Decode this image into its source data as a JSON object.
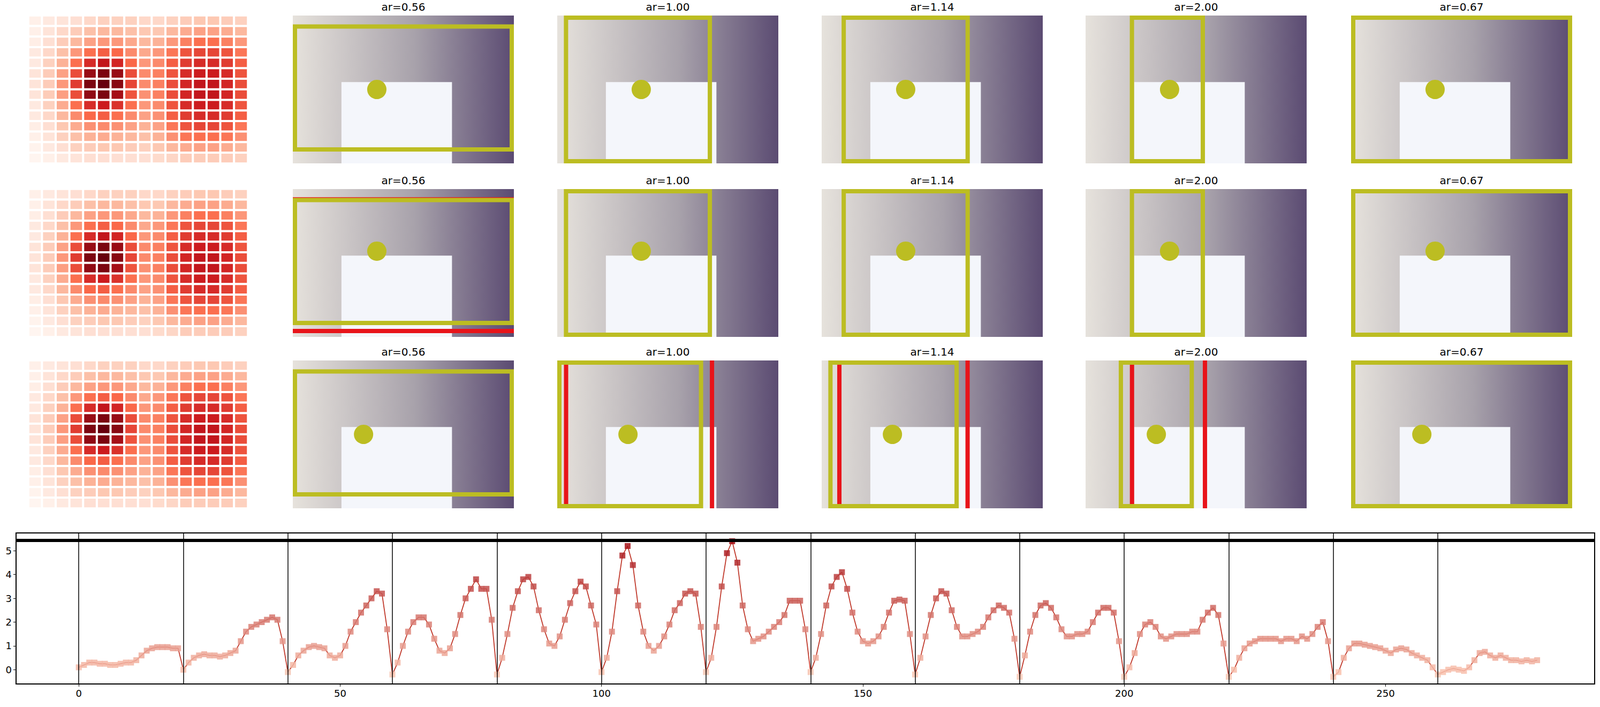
{
  "chart_data": [
    {
      "type": "heatmap",
      "tick_labels": false,
      "cells": [
        [
          0.05,
          0.08,
          0.1,
          0.12,
          0.15,
          0.18,
          0.18,
          0.18,
          0.15,
          0.15,
          0.18,
          0.2,
          0.22,
          0.22,
          0.2,
          0.18
        ],
        [
          0.05,
          0.1,
          0.15,
          0.2,
          0.25,
          0.28,
          0.28,
          0.25,
          0.22,
          0.22,
          0.28,
          0.32,
          0.35,
          0.35,
          0.32,
          0.28
        ],
        [
          0.06,
          0.12,
          0.2,
          0.28,
          0.35,
          0.38,
          0.38,
          0.33,
          0.28,
          0.3,
          0.38,
          0.45,
          0.5,
          0.5,
          0.45,
          0.38
        ],
        [
          0.08,
          0.15,
          0.25,
          0.38,
          0.5,
          0.55,
          0.52,
          0.42,
          0.33,
          0.38,
          0.48,
          0.58,
          0.62,
          0.62,
          0.58,
          0.48
        ],
        [
          0.08,
          0.18,
          0.3,
          0.5,
          0.7,
          0.78,
          0.72,
          0.52,
          0.38,
          0.42,
          0.55,
          0.65,
          0.7,
          0.7,
          0.65,
          0.55
        ],
        [
          0.1,
          0.2,
          0.35,
          0.6,
          0.88,
          0.95,
          0.88,
          0.6,
          0.42,
          0.45,
          0.58,
          0.7,
          0.75,
          0.75,
          0.7,
          0.58
        ],
        [
          0.1,
          0.2,
          0.38,
          0.65,
          0.95,
          1.0,
          0.92,
          0.62,
          0.42,
          0.45,
          0.6,
          0.72,
          0.78,
          0.78,
          0.72,
          0.6
        ],
        [
          0.1,
          0.2,
          0.36,
          0.6,
          0.9,
          0.95,
          0.85,
          0.58,
          0.4,
          0.45,
          0.6,
          0.72,
          0.78,
          0.78,
          0.72,
          0.6
        ],
        [
          0.08,
          0.18,
          0.32,
          0.5,
          0.7,
          0.75,
          0.68,
          0.5,
          0.38,
          0.42,
          0.58,
          0.7,
          0.75,
          0.75,
          0.7,
          0.58
        ],
        [
          0.08,
          0.15,
          0.28,
          0.42,
          0.52,
          0.55,
          0.5,
          0.42,
          0.35,
          0.4,
          0.55,
          0.65,
          0.7,
          0.7,
          0.65,
          0.55
        ],
        [
          0.06,
          0.12,
          0.22,
          0.32,
          0.4,
          0.42,
          0.4,
          0.35,
          0.3,
          0.35,
          0.48,
          0.58,
          0.62,
          0.62,
          0.58,
          0.48
        ],
        [
          0.05,
          0.1,
          0.18,
          0.25,
          0.3,
          0.32,
          0.3,
          0.28,
          0.25,
          0.3,
          0.4,
          0.48,
          0.5,
          0.5,
          0.48,
          0.4
        ],
        [
          0.04,
          0.08,
          0.12,
          0.18,
          0.2,
          0.22,
          0.22,
          0.2,
          0.18,
          0.22,
          0.28,
          0.32,
          0.35,
          0.35,
          0.32,
          0.28
        ],
        [
          0.03,
          0.05,
          0.08,
          0.1,
          0.12,
          0.12,
          0.12,
          0.12,
          0.12,
          0.14,
          0.16,
          0.2,
          0.2,
          0.2,
          0.2,
          0.18
        ]
      ]
    },
    {
      "type": "heatmap",
      "tick_labels": false,
      "cells": [
        [
          0.05,
          0.08,
          0.1,
          0.12,
          0.15,
          0.18,
          0.18,
          0.18,
          0.15,
          0.15,
          0.18,
          0.2,
          0.22,
          0.22,
          0.2,
          0.18
        ],
        [
          0.05,
          0.1,
          0.15,
          0.2,
          0.25,
          0.28,
          0.28,
          0.25,
          0.22,
          0.22,
          0.28,
          0.32,
          0.35,
          0.35,
          0.32,
          0.28
        ],
        [
          0.06,
          0.12,
          0.2,
          0.28,
          0.35,
          0.38,
          0.38,
          0.33,
          0.28,
          0.3,
          0.38,
          0.45,
          0.5,
          0.5,
          0.45,
          0.38
        ],
        [
          0.08,
          0.15,
          0.25,
          0.38,
          0.5,
          0.55,
          0.52,
          0.42,
          0.33,
          0.38,
          0.48,
          0.58,
          0.62,
          0.62,
          0.58,
          0.48
        ],
        [
          0.08,
          0.18,
          0.3,
          0.5,
          0.7,
          0.78,
          0.72,
          0.52,
          0.38,
          0.42,
          0.55,
          0.65,
          0.7,
          0.7,
          0.65,
          0.55
        ],
        [
          0.1,
          0.2,
          0.35,
          0.6,
          0.88,
          0.95,
          0.88,
          0.6,
          0.42,
          0.45,
          0.58,
          0.7,
          0.75,
          0.75,
          0.7,
          0.58
        ],
        [
          0.1,
          0.2,
          0.38,
          0.65,
          0.95,
          1.0,
          0.92,
          0.62,
          0.42,
          0.45,
          0.6,
          0.72,
          0.78,
          0.78,
          0.72,
          0.6
        ],
        [
          0.1,
          0.2,
          0.36,
          0.6,
          0.9,
          0.95,
          0.85,
          0.58,
          0.4,
          0.45,
          0.6,
          0.72,
          0.78,
          0.78,
          0.72,
          0.6
        ],
        [
          0.08,
          0.18,
          0.32,
          0.5,
          0.7,
          0.75,
          0.68,
          0.5,
          0.38,
          0.42,
          0.58,
          0.7,
          0.75,
          0.75,
          0.7,
          0.58
        ],
        [
          0.08,
          0.15,
          0.28,
          0.42,
          0.52,
          0.55,
          0.5,
          0.42,
          0.35,
          0.4,
          0.55,
          0.65,
          0.7,
          0.7,
          0.65,
          0.55
        ],
        [
          0.06,
          0.12,
          0.22,
          0.32,
          0.4,
          0.42,
          0.4,
          0.35,
          0.3,
          0.35,
          0.48,
          0.58,
          0.62,
          0.62,
          0.58,
          0.48
        ],
        [
          0.05,
          0.1,
          0.18,
          0.25,
          0.3,
          0.32,
          0.3,
          0.28,
          0.25,
          0.3,
          0.4,
          0.48,
          0.5,
          0.5,
          0.48,
          0.4
        ],
        [
          0.04,
          0.08,
          0.12,
          0.18,
          0.2,
          0.22,
          0.22,
          0.2,
          0.18,
          0.22,
          0.28,
          0.32,
          0.35,
          0.35,
          0.32,
          0.28
        ],
        [
          0.03,
          0.05,
          0.08,
          0.1,
          0.12,
          0.12,
          0.12,
          0.12,
          0.12,
          0.14,
          0.16,
          0.2,
          0.2,
          0.2,
          0.2,
          0.18
        ]
      ]
    },
    {
      "type": "heatmap",
      "tick_labels": false,
      "cells": [
        [
          0.05,
          0.08,
          0.1,
          0.12,
          0.15,
          0.18,
          0.18,
          0.18,
          0.15,
          0.15,
          0.18,
          0.2,
          0.22,
          0.22,
          0.2,
          0.18
        ],
        [
          0.05,
          0.1,
          0.15,
          0.2,
          0.25,
          0.28,
          0.28,
          0.25,
          0.22,
          0.22,
          0.28,
          0.32,
          0.35,
          0.35,
          0.32,
          0.28
        ],
        [
          0.06,
          0.12,
          0.2,
          0.28,
          0.35,
          0.38,
          0.38,
          0.33,
          0.28,
          0.3,
          0.38,
          0.45,
          0.5,
          0.5,
          0.45,
          0.38
        ],
        [
          0.08,
          0.15,
          0.25,
          0.38,
          0.5,
          0.55,
          0.52,
          0.42,
          0.33,
          0.38,
          0.48,
          0.58,
          0.62,
          0.62,
          0.58,
          0.48
        ],
        [
          0.08,
          0.18,
          0.3,
          0.5,
          0.7,
          0.78,
          0.72,
          0.52,
          0.38,
          0.42,
          0.55,
          0.65,
          0.7,
          0.7,
          0.65,
          0.55
        ],
        [
          0.1,
          0.2,
          0.35,
          0.6,
          0.88,
          0.95,
          0.88,
          0.6,
          0.42,
          0.45,
          0.58,
          0.7,
          0.75,
          0.75,
          0.7,
          0.58
        ],
        [
          0.1,
          0.2,
          0.38,
          0.65,
          0.95,
          1.0,
          0.92,
          0.62,
          0.42,
          0.45,
          0.6,
          0.72,
          0.78,
          0.78,
          0.72,
          0.6
        ],
        [
          0.1,
          0.2,
          0.36,
          0.6,
          0.9,
          0.95,
          0.85,
          0.58,
          0.4,
          0.45,
          0.6,
          0.72,
          0.78,
          0.78,
          0.72,
          0.6
        ],
        [
          0.08,
          0.18,
          0.32,
          0.5,
          0.7,
          0.75,
          0.68,
          0.5,
          0.38,
          0.42,
          0.58,
          0.7,
          0.75,
          0.75,
          0.7,
          0.58
        ],
        [
          0.08,
          0.15,
          0.28,
          0.42,
          0.52,
          0.55,
          0.5,
          0.42,
          0.35,
          0.4,
          0.55,
          0.65,
          0.7,
          0.7,
          0.65,
          0.55
        ],
        [
          0.06,
          0.12,
          0.22,
          0.32,
          0.4,
          0.42,
          0.4,
          0.35,
          0.3,
          0.35,
          0.48,
          0.58,
          0.62,
          0.62,
          0.58,
          0.48
        ],
        [
          0.05,
          0.1,
          0.18,
          0.25,
          0.3,
          0.32,
          0.3,
          0.28,
          0.25,
          0.3,
          0.4,
          0.48,
          0.5,
          0.5,
          0.48,
          0.4
        ],
        [
          0.04,
          0.08,
          0.12,
          0.18,
          0.2,
          0.22,
          0.22,
          0.2,
          0.18,
          0.22,
          0.28,
          0.32,
          0.35,
          0.35,
          0.32,
          0.28
        ],
        [
          0.03,
          0.05,
          0.08,
          0.1,
          0.12,
          0.12,
          0.12,
          0.12,
          0.12,
          0.14,
          0.16,
          0.2,
          0.2,
          0.2,
          0.2,
          0.18
        ]
      ]
    },
    {
      "type": "line",
      "color": "#c0392b",
      "marker": "square",
      "grid": false,
      "xlim": [
        -12,
        290
      ],
      "ylim": [
        -0.6,
        5.75
      ],
      "xticks": [
        0,
        50,
        100,
        150,
        200,
        250
      ],
      "yticks": [
        0,
        1,
        2,
        3,
        4,
        5
      ],
      "vlines": [
        0,
        20,
        40,
        60,
        80,
        100,
        120,
        140,
        160,
        180,
        200,
        220,
        240,
        260
      ],
      "hlines": [
        5.45
      ],
      "x": [
        0,
        1,
        2,
        3,
        4,
        5,
        6,
        7,
        8,
        9,
        10,
        11,
        12,
        13,
        14,
        15,
        16,
        17,
        18,
        19,
        20,
        21,
        22,
        23,
        24,
        25,
        26,
        27,
        28,
        29,
        30,
        31,
        32,
        33,
        34,
        35,
        36,
        37,
        38,
        39,
        40,
        41,
        42,
        43,
        44,
        45,
        46,
        47,
        48,
        49,
        50,
        51,
        52,
        53,
        54,
        55,
        56,
        57,
        58,
        59,
        60,
        61,
        62,
        63,
        64,
        65,
        66,
        67,
        68,
        69,
        70,
        71,
        72,
        73,
        74,
        75,
        76,
        77,
        78,
        79,
        80,
        81,
        82,
        83,
        84,
        85,
        86,
        87,
        88,
        89,
        90,
        91,
        92,
        93,
        94,
        95,
        96,
        97,
        98,
        99,
        100,
        101,
        102,
        103,
        104,
        105,
        106,
        107,
        108,
        109,
        110,
        111,
        112,
        113,
        114,
        115,
        116,
        117,
        118,
        119,
        120,
        121,
        122,
        123,
        124,
        125,
        126,
        127,
        128,
        129,
        130,
        131,
        132,
        133,
        134,
        135,
        136,
        137,
        138,
        139,
        140,
        141,
        142,
        143,
        144,
        145,
        146,
        147,
        148,
        149,
        150,
        151,
        152,
        153,
        154,
        155,
        156,
        157,
        158,
        159,
        160,
        161,
        162,
        163,
        164,
        165,
        166,
        167,
        168,
        169,
        170,
        171,
        172,
        173,
        174,
        175,
        176,
        177,
        178,
        179,
        180,
        181,
        182,
        183,
        184,
        185,
        186,
        187,
        188,
        189,
        190,
        191,
        192,
        193,
        194,
        195,
        196,
        197,
        198,
        199,
        200,
        201,
        202,
        203,
        204,
        205,
        206,
        207,
        208,
        209,
        210,
        211,
        212,
        213,
        214,
        215,
        216,
        217,
        218,
        219,
        220,
        221,
        222,
        223,
        224,
        225,
        226,
        227,
        228,
        229,
        230,
        231,
        232,
        233,
        234,
        235,
        236,
        237,
        238,
        239,
        240,
        241,
        242,
        243,
        244,
        245,
        246,
        247,
        248,
        249,
        250,
        251,
        252,
        253,
        254,
        255,
        256,
        257,
        258,
        259,
        260,
        261,
        262,
        263,
        264,
        265,
        266,
        267,
        268,
        269,
        270,
        271,
        272,
        273,
        274,
        275,
        276,
        277,
        278,
        279
      ],
      "values": [
        0.1,
        0.2,
        0.3,
        0.3,
        0.25,
        0.25,
        0.2,
        0.2,
        0.25,
        0.3,
        0.3,
        0.4,
        0.6,
        0.8,
        0.9,
        0.95,
        0.95,
        0.95,
        0.9,
        0.9,
        0.0,
        0.3,
        0.5,
        0.6,
        0.65,
        0.6,
        0.6,
        0.55,
        0.6,
        0.7,
        0.8,
        1.2,
        1.6,
        1.8,
        1.9,
        2.0,
        2.1,
        2.2,
        2.1,
        1.2,
        -0.1,
        0.2,
        0.6,
        0.8,
        0.95,
        1.0,
        0.95,
        0.9,
        0.6,
        0.5,
        0.6,
        1.0,
        1.6,
        2.0,
        2.4,
        2.7,
        3.0,
        3.3,
        3.2,
        1.7,
        -0.2,
        0.3,
        1.0,
        1.6,
        2.0,
        2.2,
        2.2,
        1.9,
        1.3,
        0.8,
        0.7,
        0.9,
        1.5,
        2.3,
        3.0,
        3.4,
        3.8,
        3.4,
        3.4,
        2.1,
        -0.2,
        0.5,
        1.5,
        2.6,
        3.3,
        3.8,
        3.9,
        3.5,
        2.5,
        1.7,
        1.1,
        1.0,
        1.4,
        2.1,
        2.8,
        3.3,
        3.7,
        3.5,
        2.7,
        1.9,
        -0.1,
        0.5,
        1.6,
        3.3,
        4.8,
        5.2,
        4.4,
        2.7,
        1.6,
        1.0,
        0.8,
        1.0,
        1.4,
        1.9,
        2.5,
        2.8,
        3.2,
        3.3,
        3.2,
        1.8,
        -0.1,
        0.5,
        1.8,
        3.5,
        4.9,
        5.4,
        4.5,
        2.7,
        1.7,
        1.2,
        1.3,
        1.4,
        1.6,
        1.8,
        2.0,
        2.3,
        2.9,
        2.9,
        2.9,
        1.7,
        -0.1,
        0.5,
        1.5,
        2.7,
        3.5,
        3.9,
        4.1,
        3.4,
        2.4,
        1.6,
        1.2,
        1.1,
        1.2,
        1.4,
        1.8,
        2.4,
        2.9,
        2.95,
        2.9,
        1.5,
        -0.2,
        0.5,
        1.4,
        2.3,
        3.0,
        3.3,
        3.2,
        2.5,
        1.8,
        1.4,
        1.4,
        1.5,
        1.6,
        1.8,
        2.2,
        2.5,
        2.7,
        2.6,
        2.4,
        1.3,
        -0.3,
        0.6,
        1.6,
        2.3,
        2.7,
        2.8,
        2.6,
        2.2,
        1.7,
        1.4,
        1.4,
        1.5,
        1.5,
        1.6,
        2.0,
        2.4,
        2.6,
        2.6,
        2.4,
        1.2,
        -0.3,
        0.1,
        0.7,
        1.5,
        1.9,
        2.0,
        1.8,
        1.4,
        1.3,
        1.4,
        1.5,
        1.5,
        1.5,
        1.6,
        1.6,
        2.1,
        2.4,
        2.6,
        2.3,
        1.1,
        -0.3,
        0.0,
        0.5,
        0.9,
        1.1,
        1.2,
        1.3,
        1.3,
        1.3,
        1.3,
        1.2,
        1.3,
        1.3,
        1.2,
        1.4,
        1.3,
        1.5,
        1.8,
        2.0,
        1.2,
        -0.3,
        -0.1,
        0.5,
        0.9,
        1.1,
        1.1,
        1.05,
        1.0,
        0.95,
        0.9,
        0.8,
        0.7,
        0.85,
        0.9,
        0.85,
        0.7,
        0.6,
        0.5,
        0.4,
        0.1,
        -0.2,
        -0.1,
        0.0,
        0.05,
        0.0,
        -0.05,
        0.1,
        0.4,
        0.7,
        0.75,
        0.6,
        0.5,
        0.6,
        0.5,
        0.4,
        0.4,
        0.35,
        0.4,
        0.35,
        0.4
      ]
    }
  ],
  "image_panels": [
    [
      "ar=0.56",
      "ar=1.00",
      "ar=1.14",
      "ar=2.00",
      "ar=0.67"
    ],
    [
      "ar=0.56",
      "ar=1.00",
      "ar=1.14",
      "ar=2.00",
      "ar=0.67"
    ],
    [
      "ar=0.56",
      "ar=1.00",
      "ar=1.14",
      "ar=2.00",
      "ar=0.67"
    ]
  ]
}
